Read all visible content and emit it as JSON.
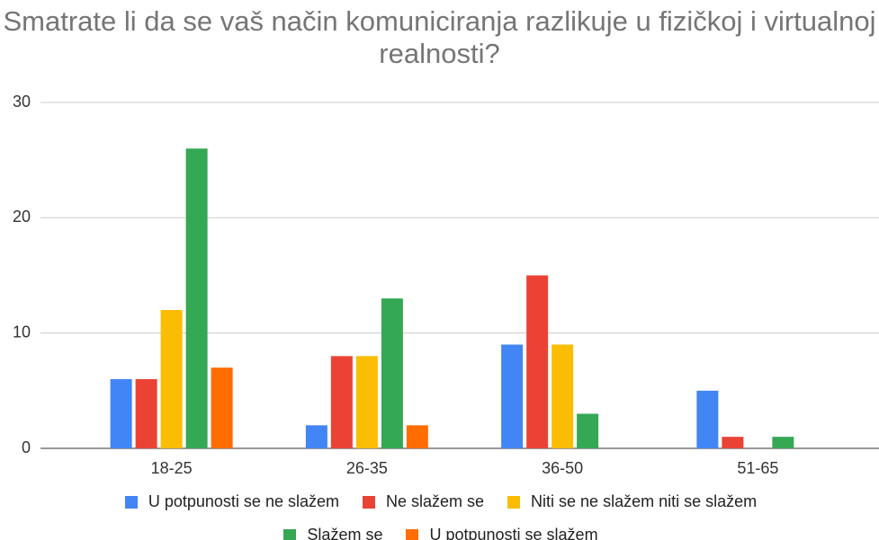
{
  "chart_data": {
    "type": "bar",
    "title": "Smatrate li da se vaš način komuniciranja razlikuje u fizičkoj i virtualnoj realnosti?",
    "categories": [
      "18-25",
      "26-35",
      "36-50",
      "51-65"
    ],
    "series": [
      {
        "name": "U potpunosti se ne slažem",
        "color": "#4285f4",
        "values": [
          6,
          2,
          9,
          5
        ]
      },
      {
        "name": "Ne slažem se",
        "color": "#ea4335",
        "values": [
          6,
          8,
          15,
          1
        ]
      },
      {
        "name": "Niti se ne slažem niti se slažem",
        "color": "#fbbc04",
        "values": [
          12,
          8,
          9,
          0
        ]
      },
      {
        "name": "Slažem se",
        "color": "#34a853",
        "values": [
          26,
          13,
          3,
          1
        ]
      },
      {
        "name": "U potpunosti se slažem",
        "color": "#ff6d01",
        "values": [
          7,
          2,
          0,
          0
        ]
      }
    ],
    "ylim": [
      0,
      30
    ],
    "yticks": [
      0,
      10,
      20,
      30
    ],
    "grid": true,
    "legend": "bottom"
  }
}
